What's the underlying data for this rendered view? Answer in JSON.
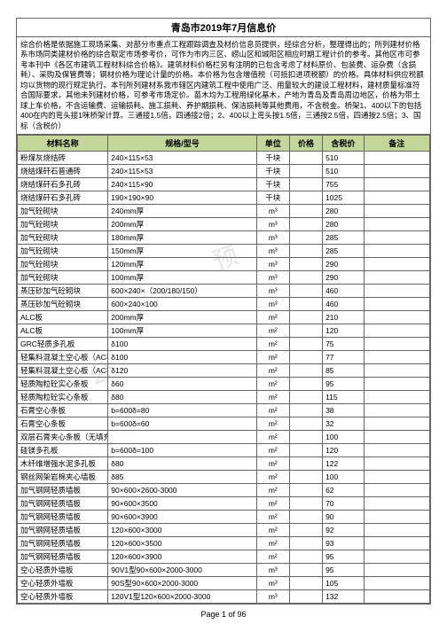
{
  "title": "青岛市2019年7月信息价",
  "intro": "综合价格是依据施工现场采集、对部分市重点工程跟踪调查及材价信息员提供，经综合分析，整理得出的；所列建材价格系市场同类建材价格的综合取定市场参考价，可作为市内三区、崂山区和城阳区相应时期工程计价的参考。其他区市可参考本刊中《各区市建筑工程材料综合价格》。建筑材料价格栏另有注明的已包含考虑了材料原价、包装费、运杂费（含损耗）、采购及保管费等；钢材价格为理论计量的价格。本价格为包含增值税（可抵扣进项税额）的价格。具体材料供应税额均以货物的现行规定执行。本刊所列建材系我市辖区内建筑工程中使用广泛、用量较大的建设工程材料，建材质量标准符合国际要求，其他未列建材价格，可参考市场定价。苗木均为工程用绿化基木，产地为青岛及青岛周边地区，价格为带土球上车价格，不含运输费、运输损耗、施工损耗、养护期损耗、保洁损耗等其他费用，不含税金。桥架1、400以下的包括400在内的弯头接1咪桥架计算。三通接1.5倍，四通接2倍；2、400以上弯头按1.5倍，三通按2.5倍，四通按2.5倍；3、国标（含税价）",
  "headers": [
    "材料名称",
    "规格/型号",
    "单位",
    "价格",
    "含税价",
    "备注"
  ],
  "rows": [
    [
      "粉煤灰烧结砖",
      "240×115×53",
      "千块",
      "",
      "510",
      ""
    ],
    [
      "烧结煤矸石普通砖",
      "240×115×53",
      "千块",
      "",
      "510",
      ""
    ],
    [
      "烧结煤矸石多孔砖",
      "240×115×90",
      "千块",
      "",
      "755",
      ""
    ],
    [
      "烧结煤矸石多孔砖",
      "190×190×90",
      "千块",
      "",
      "1025",
      ""
    ],
    [
      "加气砼砌块",
      "240mm厚",
      "m³",
      "",
      "280",
      ""
    ],
    [
      "加气砼砌块",
      "200mm厚",
      "m³",
      "",
      "280",
      ""
    ],
    [
      "加气砼砌块",
      "180mm厚",
      "m³",
      "",
      "285",
      ""
    ],
    [
      "加气砼砌块",
      "150mm厚",
      "m³",
      "",
      "285",
      ""
    ],
    [
      "加气砼砌块",
      "120mm厚",
      "m³",
      "",
      "290",
      ""
    ],
    [
      "加气砼砌块",
      "100mm厚",
      "m³",
      "",
      "290",
      ""
    ],
    [
      "蒸压砂加气砼砌块",
      "600×240×（200/180/150）",
      "m³",
      "",
      "460",
      ""
    ],
    [
      "蒸压砂加气砼砌块",
      "600×240×100",
      "m³",
      "",
      "460",
      ""
    ],
    [
      "ALC板",
      "200mm厚",
      "m²",
      "",
      "210",
      ""
    ],
    [
      "ALC板",
      "100mm厚",
      "m²",
      "",
      "120",
      ""
    ],
    [
      "GRC轻质多孔板",
      "δ100",
      "m²",
      "",
      "75",
      ""
    ],
    [
      "轻集料混凝土空心板（AC板）",
      "δ100",
      "m²",
      "",
      "77",
      ""
    ],
    [
      "轻集料混凝土空心板（AC板）",
      "δ120",
      "m²",
      "",
      "85",
      ""
    ],
    [
      "轻质陶粒砼实心条板",
      "δ60",
      "m²",
      "",
      "95",
      ""
    ],
    [
      "轻质陶粒砼实心条板",
      "δ80",
      "m²",
      "",
      "115",
      ""
    ],
    [
      "石膏空心条板",
      "b=600δ=80",
      "m²",
      "",
      "38",
      ""
    ],
    [
      "石膏空心条板",
      "b=600δ=60",
      "m²",
      "",
      "32",
      ""
    ],
    [
      "双层石膏夹心条板（无填充）成品",
      "",
      "m²",
      "",
      "100",
      ""
    ],
    [
      "硅镁多孔板",
      "b=600δ=100",
      "m²",
      "",
      "120",
      ""
    ],
    [
      "木纤维增强水泥多孔板",
      "δ80",
      "m²",
      "",
      "122",
      ""
    ],
    [
      "钢丝网架岩棉夹心墙板",
      "δ85",
      "m²",
      "",
      "100",
      ""
    ],
    [
      "加气钢网轻质墙板",
      "90×600×2600-3000",
      "m²",
      "",
      "62",
      ""
    ],
    [
      "加气钢网轻质墙板",
      "90×600×3500",
      "m²",
      "",
      "70",
      ""
    ],
    [
      "加气钢网轻质墙板",
      "90×600×3900",
      "m²",
      "",
      "90",
      ""
    ],
    [
      "加气钢网轻质墙板",
      "120×600×3000",
      "m²",
      "",
      "92",
      ""
    ],
    [
      "加气钢网轻质墙板",
      "120×600×3500",
      "m²",
      "",
      "93",
      ""
    ],
    [
      "加气钢网轻质墙板",
      "120×600×3900",
      "m²",
      "",
      "95",
      ""
    ],
    [
      "空心轻质外墙板",
      "90V1型90×600×2000-3000",
      "m³",
      "",
      "95",
      ""
    ],
    [
      "空心轻质外墙板",
      "90S型90×600×2000-3000",
      "m³",
      "",
      "105",
      ""
    ],
    [
      "空心轻质外墙板",
      "120V1型120×600×2000-3000",
      "m³",
      "",
      "132",
      ""
    ]
  ],
  "footer": "Page 1 of 96",
  "colors": {
    "header_bg": "#c4d79b",
    "border": "#666666",
    "text": "#000000",
    "watermark": "rgba(150,150,150,0.25)"
  }
}
